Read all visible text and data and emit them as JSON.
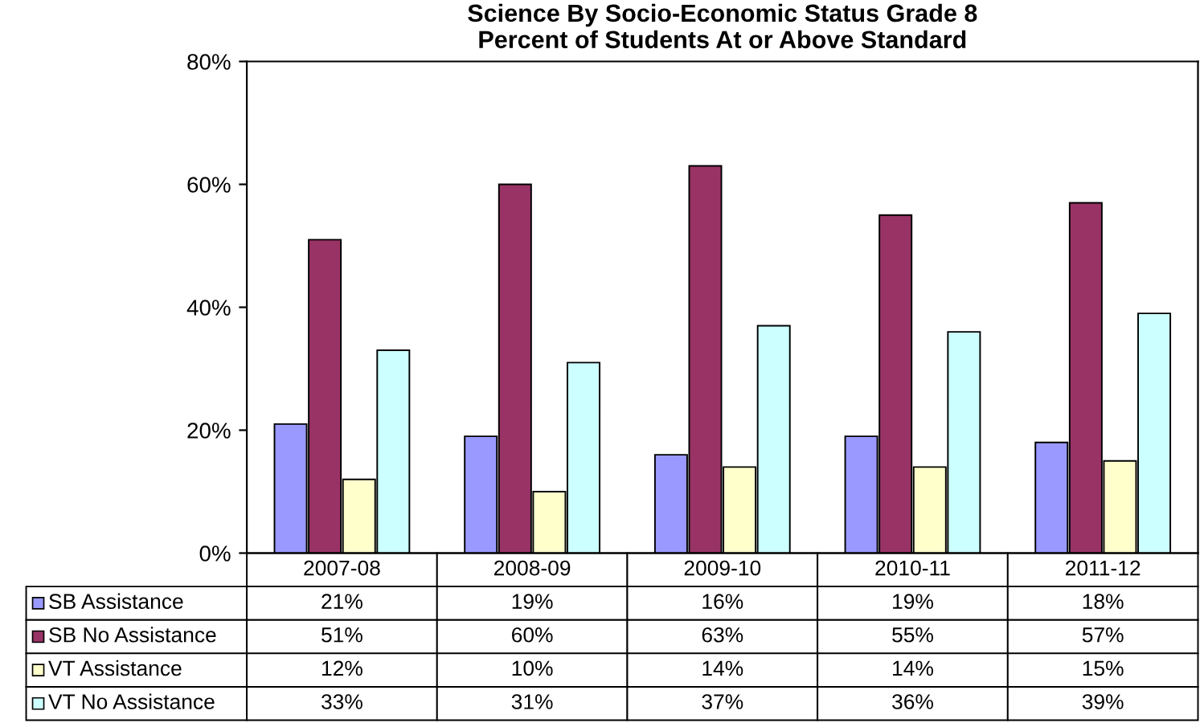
{
  "chart_data": {
    "type": "bar",
    "title": "Science By Socio-Economic Status Grade 8\nPercent of Students At or Above Standard",
    "categories": [
      "2007-08",
      "2008-09",
      "2009-10",
      "2010-11",
      "2011-12"
    ],
    "series": [
      {
        "name": "SB Assistance",
        "color": "#9999ff",
        "values": [
          21,
          19,
          16,
          19,
          18
        ],
        "value_labels": [
          "21%",
          "19%",
          "16%",
          "19%",
          "18%"
        ]
      },
      {
        "name": "SB No Assistance",
        "color": "#993366",
        "values": [
          51,
          60,
          63,
          55,
          57
        ],
        "value_labels": [
          "51%",
          "60%",
          "63%",
          "55%",
          "57%"
        ]
      },
      {
        "name": "VT Assistance",
        "color": "#ffffcc",
        "values": [
          12,
          10,
          14,
          14,
          15
        ],
        "value_labels": [
          "12%",
          "10%",
          "14%",
          "14%",
          "15%"
        ]
      },
      {
        "name": "VT No Assistance",
        "color": "#ccffff",
        "values": [
          33,
          31,
          37,
          36,
          39
        ],
        "value_labels": [
          "33%",
          "31%",
          "37%",
          "36%",
          "39%"
        ]
      }
    ],
    "ylim": [
      0,
      80
    ],
    "yticks": [
      {
        "value": 0,
        "label": "0%"
      },
      {
        "value": 20,
        "label": "20%"
      },
      {
        "value": 40,
        "label": "40%"
      },
      {
        "value": 60,
        "label": "60%"
      },
      {
        "value": 80,
        "label": "80%"
      }
    ],
    "tick_labels": "y",
    "grid": false,
    "legend": "bottom"
  }
}
